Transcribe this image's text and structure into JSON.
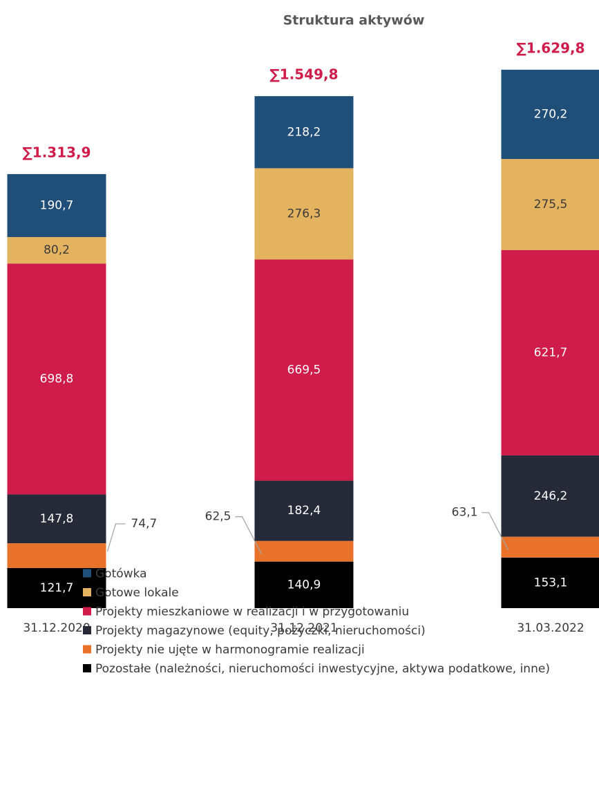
{
  "chart_data": {
    "type": "stacked-bar",
    "title": "Struktura aktywów",
    "categories": [
      "31.12.2020",
      "31.12.2021",
      "31.03.2022"
    ],
    "ylim": [
      0,
      1640
    ],
    "totals": [
      1313.9,
      1549.8,
      1629.8
    ],
    "total_labels": [
      "∑1.313,9",
      "∑1.549,8",
      "∑1.629,8"
    ],
    "series": [
      {
        "name": "Pozostałe (należności, nieruchomości inwestycyjne, aktywa podatkowe, inne)",
        "color": "#000000",
        "values": [
          121.7,
          140.9,
          153.1
        ],
        "value_labels": [
          "121,7",
          "140,9",
          "153,1"
        ]
      },
      {
        "name": "Projekty nie ujęte w harmonogramie realizacji",
        "color": "#e8722a",
        "values": [
          74.7,
          62.5,
          63.1
        ],
        "value_labels": [
          "74,7",
          "62,5",
          "63,1"
        ]
      },
      {
        "name": "Projekty magazynowe (equity, pożyczki, nieruchomości)",
        "color": "#262a38",
        "values": [
          147.8,
          182.4,
          246.2
        ],
        "value_labels": [
          "147,8",
          "182,4",
          "246,2"
        ]
      },
      {
        "name": "Projekty mieszkaniowe w realizacji i w przygotowaniu",
        "color": "#d01c4b",
        "values": [
          698.8,
          669.5,
          621.7
        ],
        "value_labels": [
          "698,8",
          "669,5",
          "621,7"
        ]
      },
      {
        "name": "Gotowe lokale",
        "color": "#e3b35f",
        "values": [
          80.2,
          276.3,
          275.5
        ],
        "value_labels": [
          "80,2",
          "276,3",
          "275,5"
        ]
      },
      {
        "name": "Gotówka",
        "color": "#1f4e79",
        "values": [
          190.7,
          218.2,
          270.2
        ],
        "value_labels": [
          "190,7",
          "218,2",
          "270,2"
        ]
      }
    ]
  }
}
